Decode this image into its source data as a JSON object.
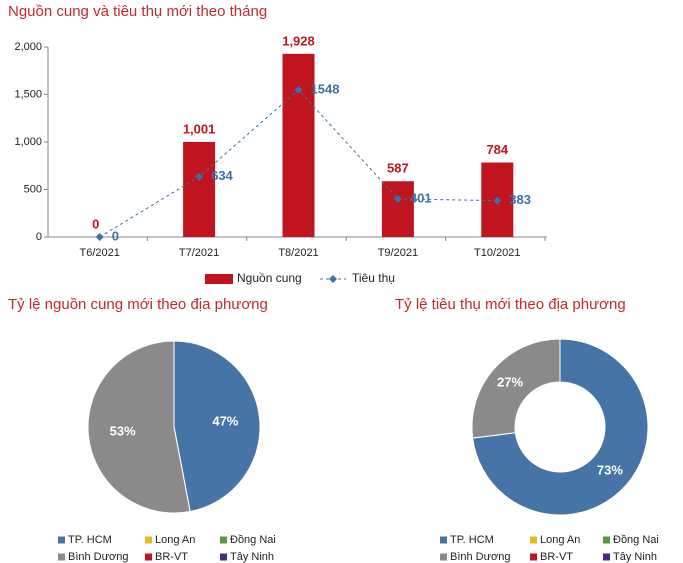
{
  "chart_data": [
    {
      "type": "bar",
      "title": "Nguồn cung và tiêu thụ mới theo tháng",
      "categories": [
        "T6/2021",
        "T7/2021",
        "T8/2021",
        "T9/2021",
        "T10/2021"
      ],
      "series": [
        {
          "name": "Nguồn cung",
          "color": "#c0141e",
          "values": [
            0,
            1001,
            1928,
            587,
            784
          ],
          "value_labels": [
            "0",
            "1,001",
            "1,928",
            "587",
            "784"
          ]
        },
        {
          "name": "Tiêu thụ",
          "color": "#3f6fa8",
          "type": "line",
          "values": [
            0,
            634,
            1548,
            401,
            383
          ]
        }
      ],
      "ylim": [
        0,
        2000
      ],
      "yticks": [
        0,
        500,
        {
          "value": 1000,
          "label": "1,000"
        },
        {
          "value": 1500,
          "label": "1,500"
        },
        {
          "value": 2000,
          "label": "2,000"
        }
      ]
    },
    {
      "type": "pie",
      "title": "Tỷ lệ nguồn cung mới theo địa phương",
      "categories": [
        "TP. HCM",
        "Long An",
        "Đồng Nai",
        "Bình Dương",
        "BR-VT",
        "Tây Ninh"
      ],
      "values": [
        47,
        0,
        0,
        53,
        0,
        0
      ],
      "value_labels": [
        "47%",
        null,
        null,
        "53%",
        null,
        null
      ],
      "colors": [
        "#4674a6",
        "#e8b820",
        "#5a9a3a",
        "#8a8a8a",
        "#c0141e",
        "#4b2a86"
      ]
    },
    {
      "type": "donut",
      "title": "Tỷ lệ tiêu thụ mới theo địa phương",
      "categories": [
        "TP. HCM",
        "Long An",
        "Đồng Nai",
        "Bình Dương",
        "BR-VT",
        "Tây Ninh"
      ],
      "values": [
        73,
        0,
        0,
        27,
        0,
        0
      ],
      "value_labels": [
        "73%",
        null,
        null,
        "27%",
        null,
        null
      ],
      "colors": [
        "#4674a6",
        "#e8b820",
        "#5a9a3a",
        "#8a8a8a",
        "#c0141e",
        "#4b2a86"
      ]
    }
  ]
}
